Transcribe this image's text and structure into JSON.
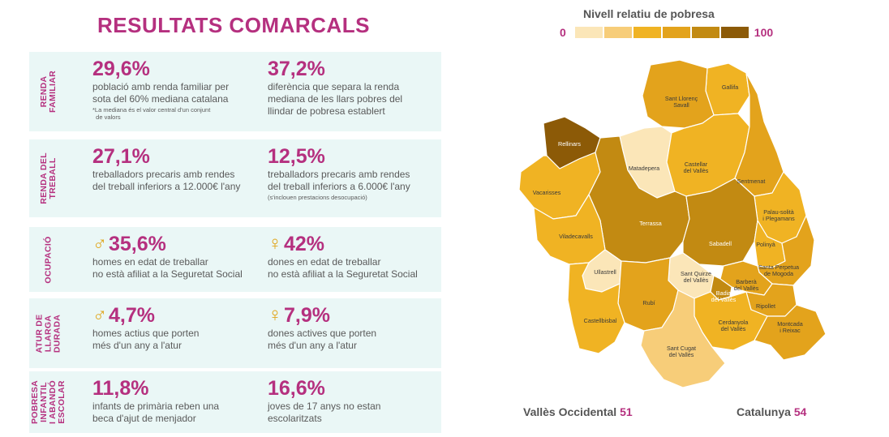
{
  "title": "RESULTATS COMARCALS",
  "legend": {
    "title": "Nivell relatiu de pobresa",
    "min": "0",
    "max": "100",
    "colors": [
      "#fbe6b8",
      "#f7cd79",
      "#f0b323",
      "#e3a31c",
      "#c28a12",
      "#8c5a07"
    ]
  },
  "panels": [
    {
      "label": "RENDA\nFAMILIAR",
      "left": {
        "value": "29,6%",
        "text": "població amb renda familiar per\nsota del 60% mediana catalana",
        "note": "*La mediana és el valor central d'un conjunt\n  de valors"
      },
      "right": {
        "value": "37,2%",
        "text": "diferència que separa la renda\nmediana de les llars pobres del\nllindar de pobresa establert"
      }
    },
    {
      "label": "RENDA DEL\nTREBALL",
      "left": {
        "value": "27,1%",
        "text": "treballadors precaris amb rendes\ndel treball inferiors a 12.000€ l'any"
      },
      "right": {
        "value": "12,5%",
        "text": "treballadors precaris amb rendes\ndel treball inferiors a 6.000€ l'any",
        "note": "(s'inclouen prestacions desocupació)"
      }
    },
    {
      "label": "OCUPACIÓ",
      "left": {
        "symbol": "♂",
        "value": "35,6%",
        "text": "homes en edat de treballar\nno està afiliat a la Seguretat Social"
      },
      "right": {
        "symbol": "♀",
        "value": "42%",
        "text": "dones en edat de treballar\nno està afiliat a la Seguretat Social"
      }
    },
    {
      "label": "ATUR DE\nLLARGA\nDURADA",
      "left": {
        "symbol": "♂",
        "value": "4,7%",
        "text": "homes actius que porten\nmés d'un any a l'atur"
      },
      "right": {
        "symbol": "♀",
        "value": "7,9%",
        "text": "dones actives que porten\nmés d'un any a l'atur"
      }
    },
    {
      "label": "POBRESA\nINFANTIL\nI ABANDÓ\nESCOLAR",
      "left": {
        "value": "11,8%",
        "text": "infants de primària reben una\nbeca d'ajut de menjador"
      },
      "right": {
        "value": "16,6%",
        "text": "joves de 17 anys no estan\nescolaritzats"
      }
    }
  ],
  "map": {
    "municipalities": [
      {
        "name": "Gallifa",
        "level": 3
      },
      {
        "name": "Sant Llorenç\nSavall",
        "level": 4
      },
      {
        "name": "Rellinars",
        "level": 6
      },
      {
        "name": "Matadepera",
        "level": 1
      },
      {
        "name": "Castellar\ndel Vallès",
        "level": 3
      },
      {
        "name": "Sentmenat",
        "level": 4
      },
      {
        "name": "Vacarisses",
        "level": 3
      },
      {
        "name": "Palau-solità\ni Plegamans",
        "level": 3
      },
      {
        "name": "Terrassa",
        "level": 5
      },
      {
        "name": "Viladecavalls",
        "level": 3
      },
      {
        "name": "Sabadell",
        "level": 5
      },
      {
        "name": "Polinyà",
        "level": 3
      },
      {
        "name": "Santa Perpetua\nde Mogoda",
        "level": 4
      },
      {
        "name": "Ullastrell",
        "level": 1
      },
      {
        "name": "Sant Quirze\ndel Vallès",
        "level": 1
      },
      {
        "name": "Barberà\ndel Vallès",
        "level": 4
      },
      {
        "name": "Badia\ndel Vallès",
        "level": 5
      },
      {
        "name": "Rubí",
        "level": 4
      },
      {
        "name": "Ripollet",
        "level": 4
      },
      {
        "name": "Castellbisbal",
        "level": 3
      },
      {
        "name": "Cerdanyola\ndel Vallès",
        "level": 3
      },
      {
        "name": "Montcada\ni Reixac",
        "level": 4
      },
      {
        "name": "Sant Cugat\ndel Vallès",
        "level": 2
      }
    ]
  },
  "summary": [
    {
      "label": "Vallès Occidental",
      "value": "51"
    },
    {
      "label": "Catalunya",
      "value": "54"
    }
  ]
}
